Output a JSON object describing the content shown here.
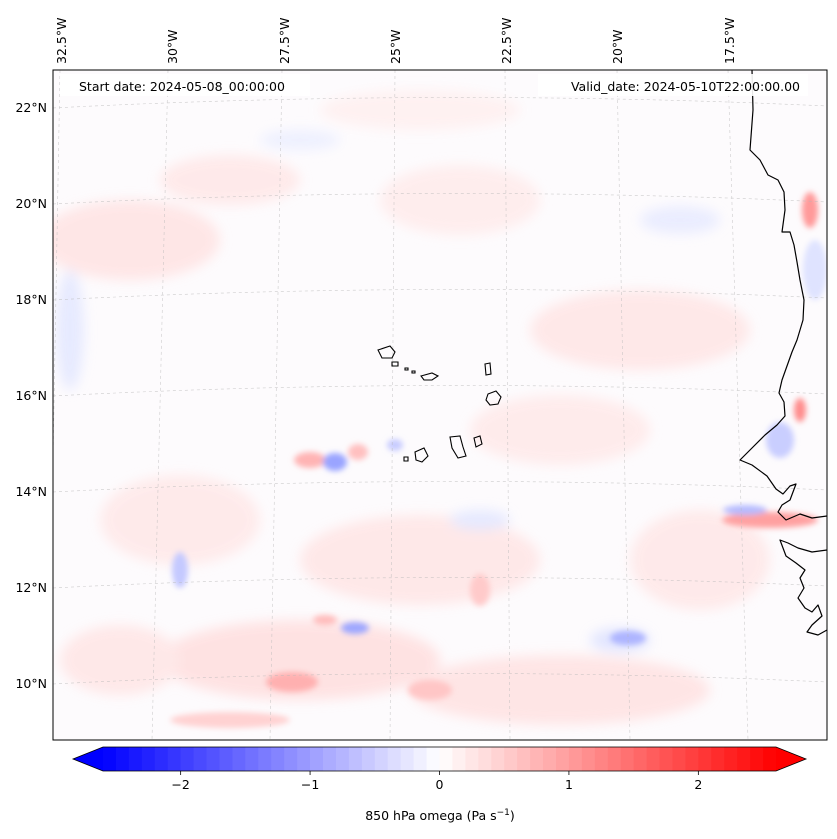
{
  "header": {
    "start_date": "Start date: 2024-05-08_00:00:00",
    "valid_date": "Valid_date: 2024-05-10T22:00:00.00"
  },
  "map": {
    "projection": "conic",
    "lon_labels": [
      "32.5°W",
      "30°W",
      "27.5°W",
      "25°W",
      "22.5°W",
      "20°W",
      "17.5°W"
    ],
    "lat_labels": [
      "22°N",
      "20°N",
      "18°N",
      "16°N",
      "14°N",
      "12°N",
      "10°N"
    ],
    "gridlines": "dashed light grey",
    "features": [
      "West African coastline",
      "Cape Verde islands"
    ]
  },
  "colorbar": {
    "label_text": "850 hPa omega (Pa s",
    "label_exp": "−1",
    "label_close": ")",
    "ticks": [
      "−2",
      "−1",
      "0",
      "1",
      "2"
    ],
    "tick_values": [
      -2,
      -1,
      0,
      1,
      2
    ],
    "range": [
      -2.6,
      2.6
    ],
    "colormap": "bwr",
    "extend": "both",
    "colors": {
      "min": "#0000ff",
      "mid": "#ffffff",
      "max": "#ff0000"
    }
  }
}
